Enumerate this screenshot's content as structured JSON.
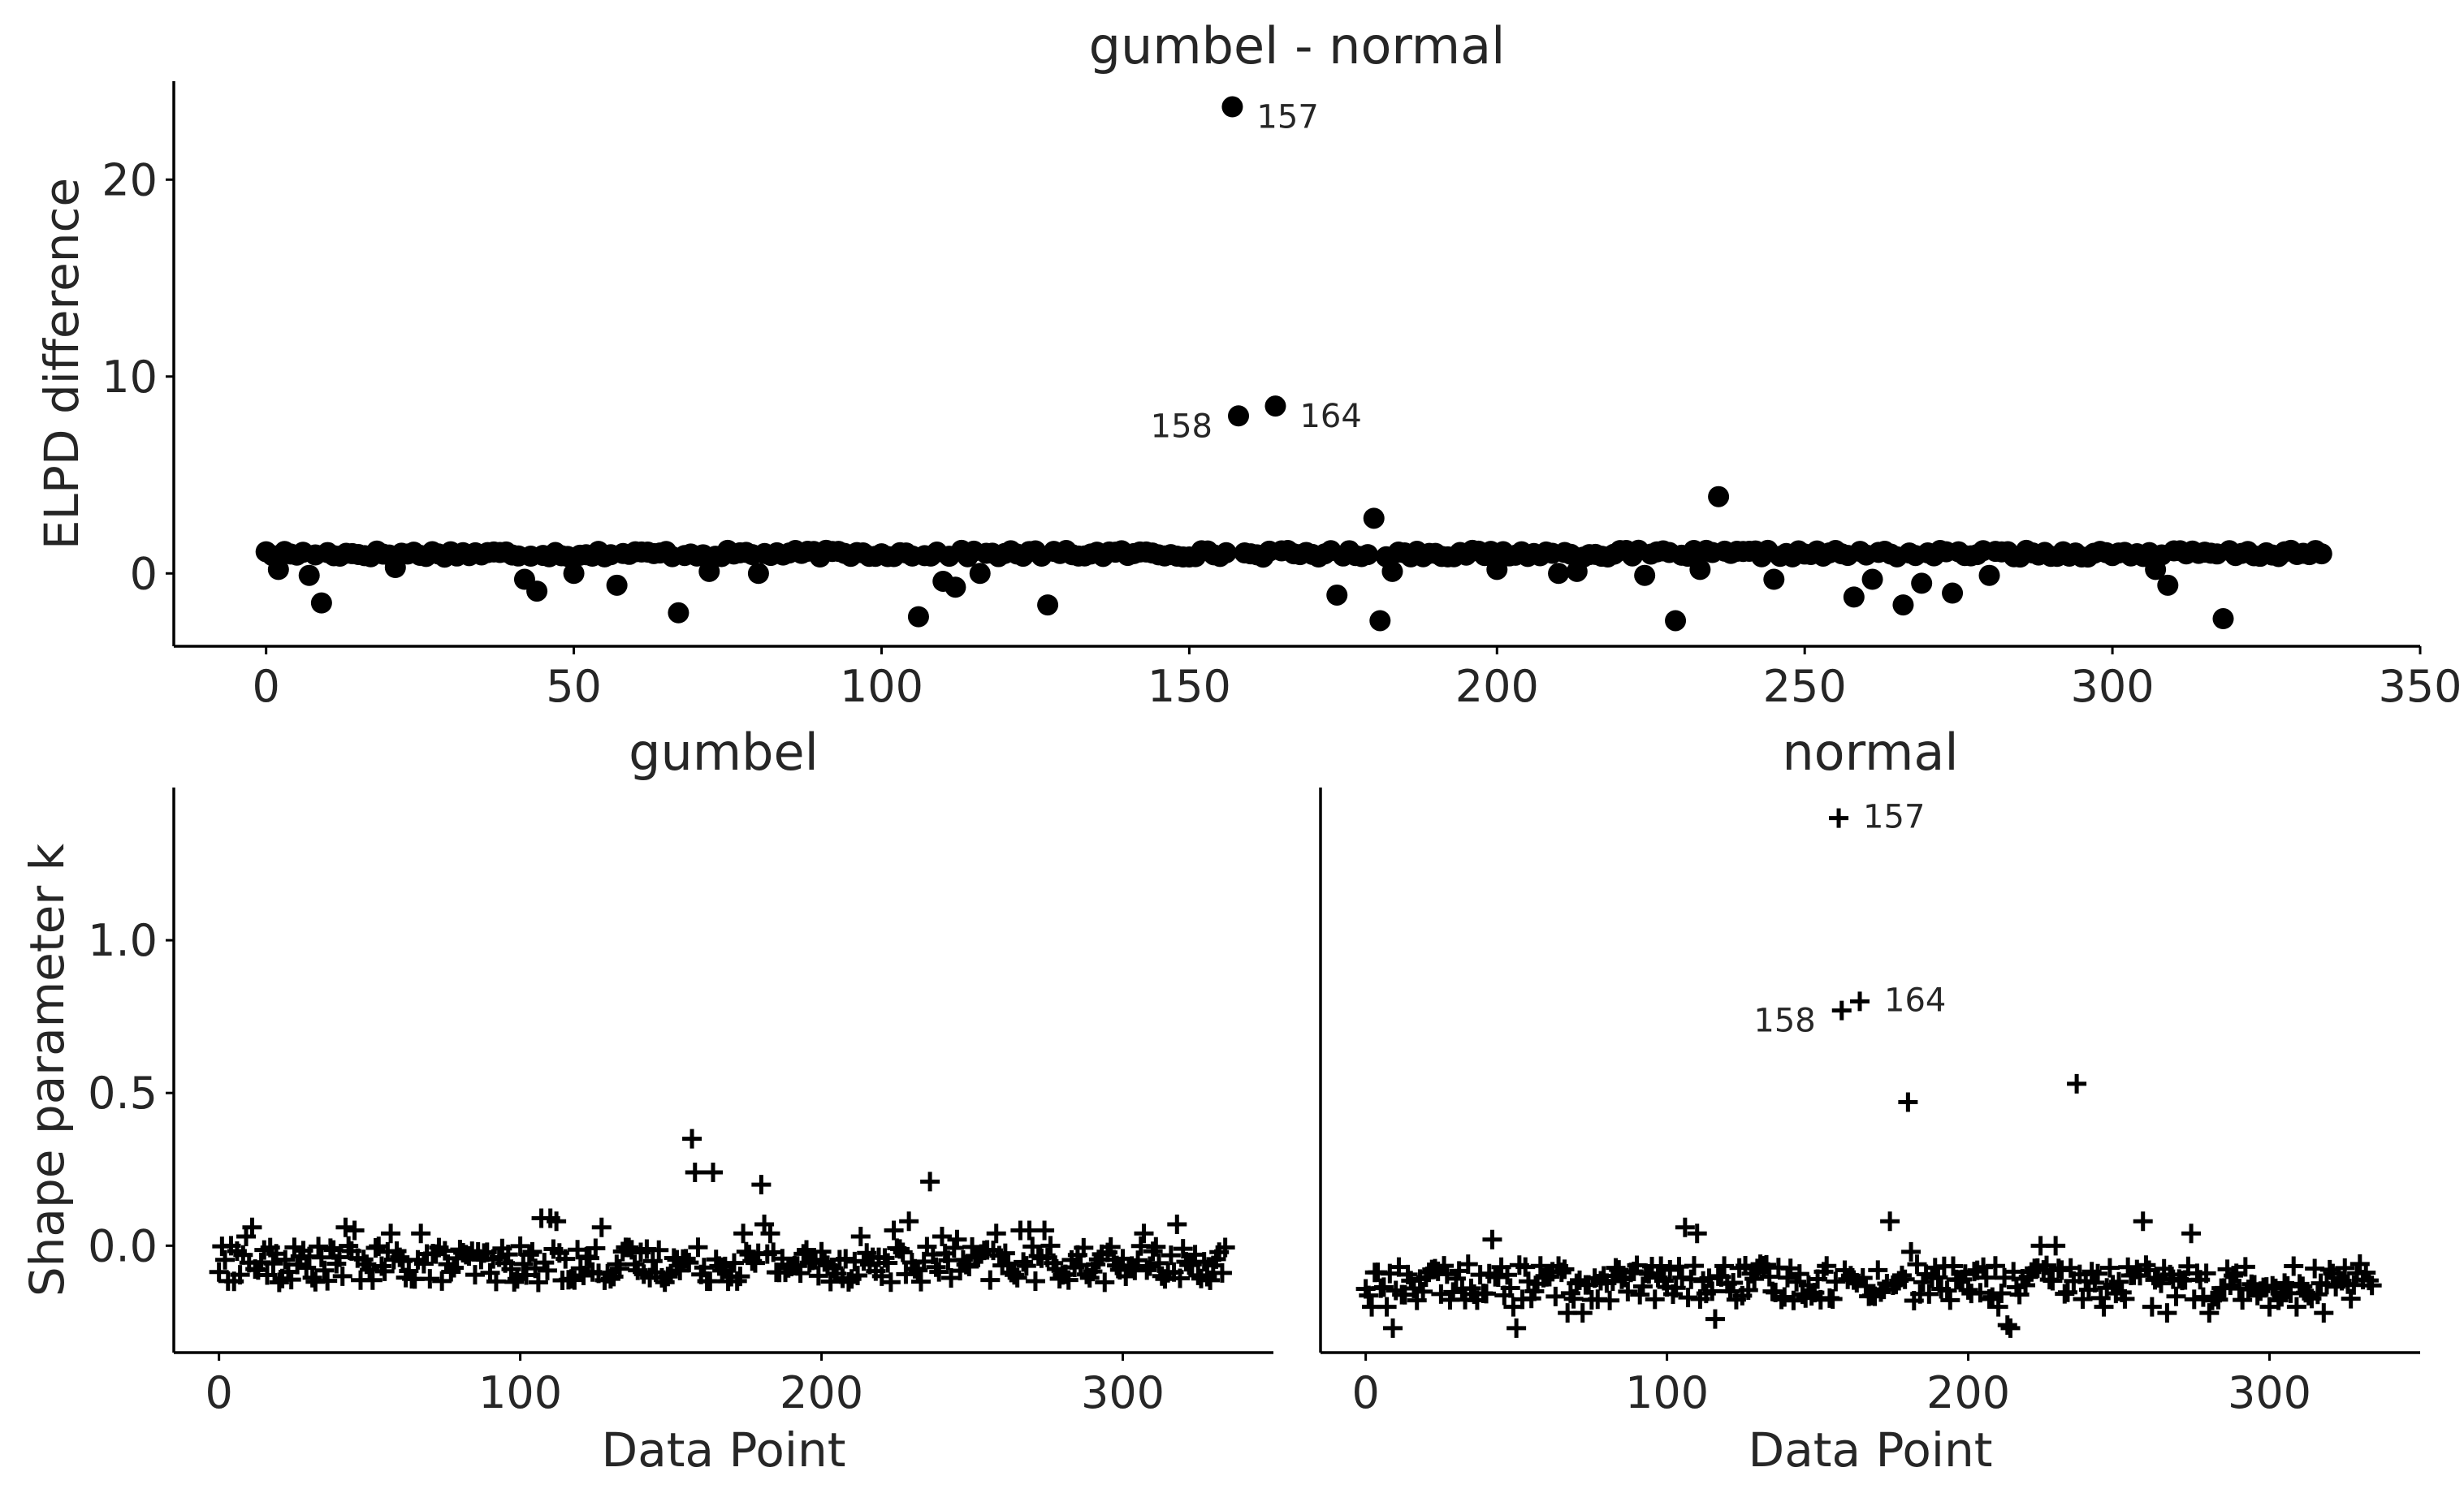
{
  "chart_data": [
    {
      "id": "top",
      "type": "scatter",
      "title": "gumbel - normal",
      "xlabel": "",
      "ylabel": "ELPD difference",
      "xlim": [
        -15,
        350
      ],
      "ylim": [
        -3.7,
        25
      ],
      "xticks": [
        0,
        50,
        100,
        150,
        200,
        250,
        300,
        350
      ],
      "yticks": [
        0,
        10,
        20
      ],
      "marker": "circle",
      "baseline": 1.0,
      "n": 335,
      "points": [
        {
          "x": 0,
          "y": 1.1
        },
        {
          "x": 2,
          "y": 0.2
        },
        {
          "x": 7,
          "y": -0.1
        },
        {
          "x": 9,
          "y": -1.5
        },
        {
          "x": 21,
          "y": 0.3
        },
        {
          "x": 42,
          "y": -0.3
        },
        {
          "x": 44,
          "y": -0.9
        },
        {
          "x": 50,
          "y": 0.0
        },
        {
          "x": 57,
          "y": -0.6
        },
        {
          "x": 67,
          "y": -2.0
        },
        {
          "x": 72,
          "y": 0.1
        },
        {
          "x": 80,
          "y": 0.0
        },
        {
          "x": 106,
          "y": -2.2
        },
        {
          "x": 110,
          "y": -0.4
        },
        {
          "x": 112,
          "y": -0.7
        },
        {
          "x": 116,
          "y": 0.0
        },
        {
          "x": 127,
          "y": -1.6
        },
        {
          "x": 157,
          "y": 23.7
        },
        {
          "x": 158,
          "y": 8.0
        },
        {
          "x": 164,
          "y": 8.5
        },
        {
          "x": 174,
          "y": -1.1
        },
        {
          "x": 180,
          "y": 2.8
        },
        {
          "x": 181,
          "y": -2.4
        },
        {
          "x": 183,
          "y": 0.1
        },
        {
          "x": 200,
          "y": 0.2
        },
        {
          "x": 210,
          "y": 0.0
        },
        {
          "x": 213,
          "y": 0.1
        },
        {
          "x": 224,
          "y": -0.1
        },
        {
          "x": 229,
          "y": -2.4
        },
        {
          "x": 233,
          "y": 0.2
        },
        {
          "x": 236,
          "y": 3.9
        },
        {
          "x": 245,
          "y": -0.3
        },
        {
          "x": 258,
          "y": -1.2
        },
        {
          "x": 261,
          "y": -0.3
        },
        {
          "x": 266,
          "y": -1.6
        },
        {
          "x": 269,
          "y": -0.5
        },
        {
          "x": 274,
          "y": -1.0
        },
        {
          "x": 280,
          "y": -0.1
        },
        {
          "x": 307,
          "y": 0.2
        },
        {
          "x": 309,
          "y": -0.6
        },
        {
          "x": 318,
          "y": -2.3
        }
      ],
      "annotations": [
        {
          "label": "157",
          "x": 157,
          "y": 23.7,
          "side": "right"
        },
        {
          "label": "158",
          "x": 158,
          "y": 8.0,
          "side": "left"
        },
        {
          "label": "164",
          "x": 164,
          "y": 8.5,
          "side": "right"
        }
      ]
    },
    {
      "id": "bottom-left",
      "type": "scatter",
      "title": "gumbel",
      "xlabel": "Data Point",
      "ylabel": "Shape parameter k",
      "xlim": [
        -15,
        350
      ],
      "ylim": [
        -0.35,
        1.5
      ],
      "xticks": [
        0,
        100,
        200,
        300
      ],
      "yticks": [
        0.0,
        0.5,
        1.0
      ],
      "ytick_labels": [
        "0.0",
        "0.5",
        "1.0"
      ],
      "marker": "plus",
      "baseline": -0.06,
      "n": 335,
      "points": [
        {
          "x": 4,
          "y": 0.0
        },
        {
          "x": 9,
          "y": 0.03
        },
        {
          "x": 11,
          "y": 0.06
        },
        {
          "x": 42,
          "y": 0.06
        },
        {
          "x": 45,
          "y": 0.05
        },
        {
          "x": 57,
          "y": 0.04
        },
        {
          "x": 67,
          "y": 0.04
        },
        {
          "x": 107,
          "y": 0.09
        },
        {
          "x": 110,
          "y": 0.09
        },
        {
          "x": 112,
          "y": 0.08
        },
        {
          "x": 127,
          "y": 0.06
        },
        {
          "x": 157,
          "y": 0.35
        },
        {
          "x": 158,
          "y": 0.24
        },
        {
          "x": 164,
          "y": 0.24
        },
        {
          "x": 174,
          "y": 0.04
        },
        {
          "x": 180,
          "y": 0.2
        },
        {
          "x": 181,
          "y": 0.07
        },
        {
          "x": 183,
          "y": 0.04
        },
        {
          "x": 213,
          "y": 0.03
        },
        {
          "x": 224,
          "y": 0.05
        },
        {
          "x": 229,
          "y": 0.08
        },
        {
          "x": 236,
          "y": 0.21
        },
        {
          "x": 240,
          "y": 0.03
        },
        {
          "x": 245,
          "y": 0.02
        },
        {
          "x": 258,
          "y": 0.04
        },
        {
          "x": 266,
          "y": 0.05
        },
        {
          "x": 269,
          "y": 0.05
        },
        {
          "x": 274,
          "y": 0.05
        },
        {
          "x": 307,
          "y": 0.04
        },
        {
          "x": 318,
          "y": 0.07
        },
        {
          "x": 20,
          "y": -0.12
        },
        {
          "x": 106,
          "y": -0.12
        }
      ],
      "annotations": []
    },
    {
      "id": "bottom-right",
      "type": "scatter",
      "title": "normal",
      "xlabel": "Data Point",
      "ylabel": "",
      "xlim": [
        -15,
        350
      ],
      "ylim": [
        -0.35,
        1.5
      ],
      "xticks": [
        0,
        100,
        200,
        300
      ],
      "yticks": [],
      "marker": "plus",
      "baseline": -0.12,
      "n": 335,
      "points": [
        {
          "x": 2,
          "y": -0.2
        },
        {
          "x": 7,
          "y": -0.2
        },
        {
          "x": 9,
          "y": -0.27
        },
        {
          "x": 42,
          "y": 0.02
        },
        {
          "x": 49,
          "y": -0.2
        },
        {
          "x": 50,
          "y": -0.27
        },
        {
          "x": 67,
          "y": -0.22
        },
        {
          "x": 72,
          "y": -0.22
        },
        {
          "x": 106,
          "y": 0.06
        },
        {
          "x": 110,
          "y": 0.04
        },
        {
          "x": 116,
          "y": -0.24
        },
        {
          "x": 157,
          "y": 1.4
        },
        {
          "x": 158,
          "y": 0.77
        },
        {
          "x": 164,
          "y": 0.8
        },
        {
          "x": 174,
          "y": 0.08
        },
        {
          "x": 180,
          "y": 0.47
        },
        {
          "x": 181,
          "y": -0.02
        },
        {
          "x": 210,
          "y": -0.2
        },
        {
          "x": 213,
          "y": -0.26
        },
        {
          "x": 214,
          "y": -0.27
        },
        {
          "x": 224,
          "y": 0.0
        },
        {
          "x": 229,
          "y": 0.0
        },
        {
          "x": 236,
          "y": 0.53
        },
        {
          "x": 245,
          "y": -0.2
        },
        {
          "x": 258,
          "y": 0.08
        },
        {
          "x": 261,
          "y": -0.2
        },
        {
          "x": 266,
          "y": -0.22
        },
        {
          "x": 274,
          "y": 0.04
        },
        {
          "x": 280,
          "y": -0.22
        },
        {
          "x": 300,
          "y": -0.2
        },
        {
          "x": 309,
          "y": -0.2
        },
        {
          "x": 318,
          "y": -0.22
        },
        {
          "x": 330,
          "y": -0.06
        },
        {
          "x": 334,
          "y": -0.13
        }
      ],
      "annotations": [
        {
          "label": "157",
          "x": 157,
          "y": 1.4,
          "side": "right"
        },
        {
          "label": "158",
          "x": 158,
          "y": 0.77,
          "side": "left"
        },
        {
          "label": "164",
          "x": 164,
          "y": 0.8,
          "side": "right"
        }
      ]
    }
  ]
}
